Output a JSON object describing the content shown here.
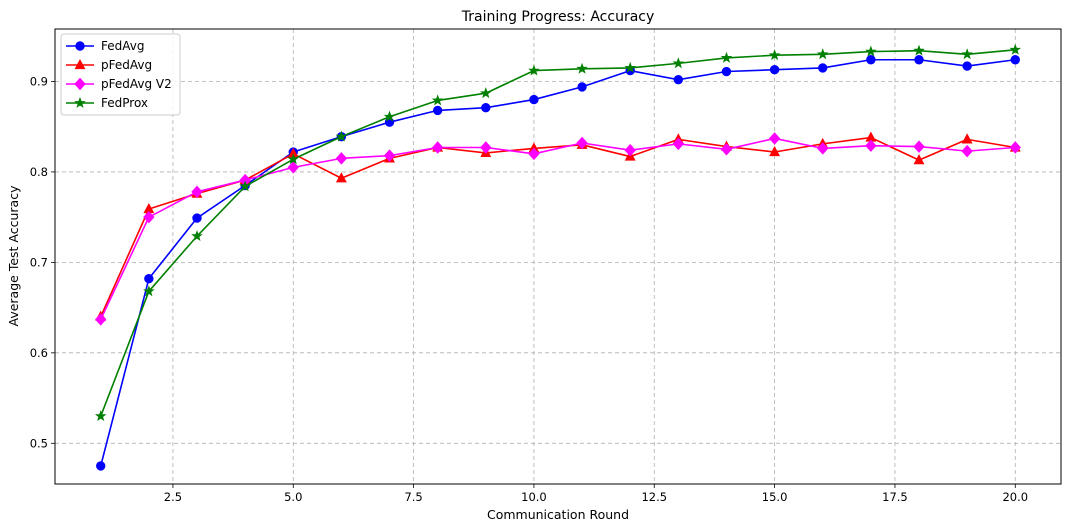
{
  "chart_data": {
    "type": "line",
    "title": "Training Progress: Accuracy",
    "xlabel": "Communication Round",
    "ylabel": "Average Test Accuracy",
    "xlim": [
      0.05,
      20.95
    ],
    "ylim": [
      0.455,
      0.958
    ],
    "xticks": [
      2.5,
      5.0,
      7.5,
      10.0,
      12.5,
      15.0,
      17.5,
      20.0
    ],
    "xtick_labels": [
      "2.5",
      "5.0",
      "7.5",
      "10.0",
      "12.5",
      "15.0",
      "17.5",
      "20.0"
    ],
    "yticks": [
      0.5,
      0.6,
      0.7,
      0.8,
      0.9
    ],
    "ytick_labels": [
      "0.5",
      "0.6",
      "0.7",
      "0.8",
      "0.9"
    ],
    "grid": true,
    "legend_position": "top-left",
    "x": [
      1,
      2,
      3,
      4,
      5,
      6,
      7,
      8,
      9,
      10,
      11,
      12,
      13,
      14,
      15,
      16,
      17,
      18,
      19,
      20
    ],
    "series": [
      {
        "name": "FedAvg",
        "color": "#0000ff",
        "marker": "circle",
        "values": [
          0.475,
          0.682,
          0.749,
          0.785,
          0.822,
          0.839,
          0.855,
          0.868,
          0.871,
          0.88,
          0.894,
          0.912,
          0.902,
          0.911,
          0.913,
          0.915,
          0.924,
          0.924,
          0.917,
          0.924
        ]
      },
      {
        "name": "pFedAvg",
        "color": "#ff0000",
        "marker": "triangle",
        "values": [
          0.64,
          0.759,
          0.776,
          0.791,
          0.82,
          0.793,
          0.815,
          0.827,
          0.821,
          0.826,
          0.83,
          0.817,
          0.836,
          0.828,
          0.822,
          0.831,
          0.838,
          0.813,
          0.836,
          0.827
        ]
      },
      {
        "name": "pFedAvg V2",
        "color": "#ff00ff",
        "marker": "diamond",
        "values": [
          0.637,
          0.75,
          0.778,
          0.791,
          0.805,
          0.815,
          0.818,
          0.827,
          0.827,
          0.82,
          0.832,
          0.824,
          0.831,
          0.825,
          0.837,
          0.826,
          0.829,
          0.828,
          0.823,
          0.827
        ]
      },
      {
        "name": "FedProx",
        "color": "#008000",
        "marker": "star",
        "values": [
          0.53,
          0.668,
          0.729,
          0.784,
          0.814,
          0.839,
          0.861,
          0.879,
          0.887,
          0.912,
          0.914,
          0.915,
          0.92,
          0.926,
          0.929,
          0.93,
          0.933,
          0.934,
          0.93,
          0.935
        ]
      }
    ]
  }
}
